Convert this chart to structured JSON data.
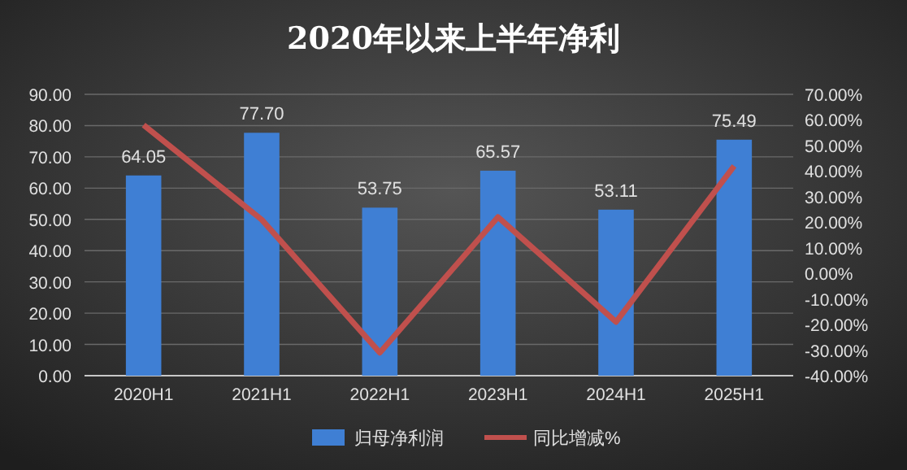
{
  "chart_data": {
    "type": "bar",
    "title": "2020年以来上半年净利",
    "categories": [
      "2020H1",
      "2021H1",
      "2022H1",
      "2023H1",
      "2024H1",
      "2025H1"
    ],
    "series": [
      {
        "name": "归母净利润",
        "color": "#3f7fd4",
        "values": [
          64.05,
          77.7,
          53.75,
          65.57,
          53.11,
          75.49
        ]
      },
      {
        "name": "同比增减%",
        "type": "line",
        "axis": "y2",
        "color": "#c0504d",
        "values": [
          58,
          21,
          -31,
          22,
          -19,
          42
        ]
      }
    ],
    "ylim": [
      0,
      90
    ],
    "yticks": [
      {
        "value": 0,
        "label": "0.00"
      },
      {
        "value": 10,
        "label": "10.00"
      },
      {
        "value": 20,
        "label": "20.00"
      },
      {
        "value": 30,
        "label": "30.00"
      },
      {
        "value": 40,
        "label": "40.00"
      },
      {
        "value": 50,
        "label": "50.00"
      },
      {
        "value": 60,
        "label": "60.00"
      },
      {
        "value": 70,
        "label": "70.00"
      },
      {
        "value": 80,
        "label": "80.00"
      },
      {
        "value": 90,
        "label": "90.00"
      }
    ],
    "y2lim": [
      -40,
      70
    ],
    "y2ticks": [
      {
        "value": -40,
        "label": "-40.00%"
      },
      {
        "value": -30,
        "label": "-30.00%"
      },
      {
        "value": -20,
        "label": "-20.00%"
      },
      {
        "value": -10,
        "label": "-10.00%"
      },
      {
        "value": 0,
        "label": "0.00%"
      },
      {
        "value": 10,
        "label": "10.00%"
      },
      {
        "value": 20,
        "label": "20.00%"
      },
      {
        "value": 30,
        "label": "30.00%"
      },
      {
        "value": 40,
        "label": "40.00%"
      },
      {
        "value": 50,
        "label": "50.00%"
      },
      {
        "value": 60,
        "label": "60.00%"
      },
      {
        "value": 70,
        "label": "70.00%"
      }
    ],
    "value_labels": [
      "64.05",
      "77.70",
      "53.75",
      "65.57",
      "53.11",
      "75.49"
    ],
    "grid": "y",
    "legend": "bottom",
    "marker": "none"
  }
}
